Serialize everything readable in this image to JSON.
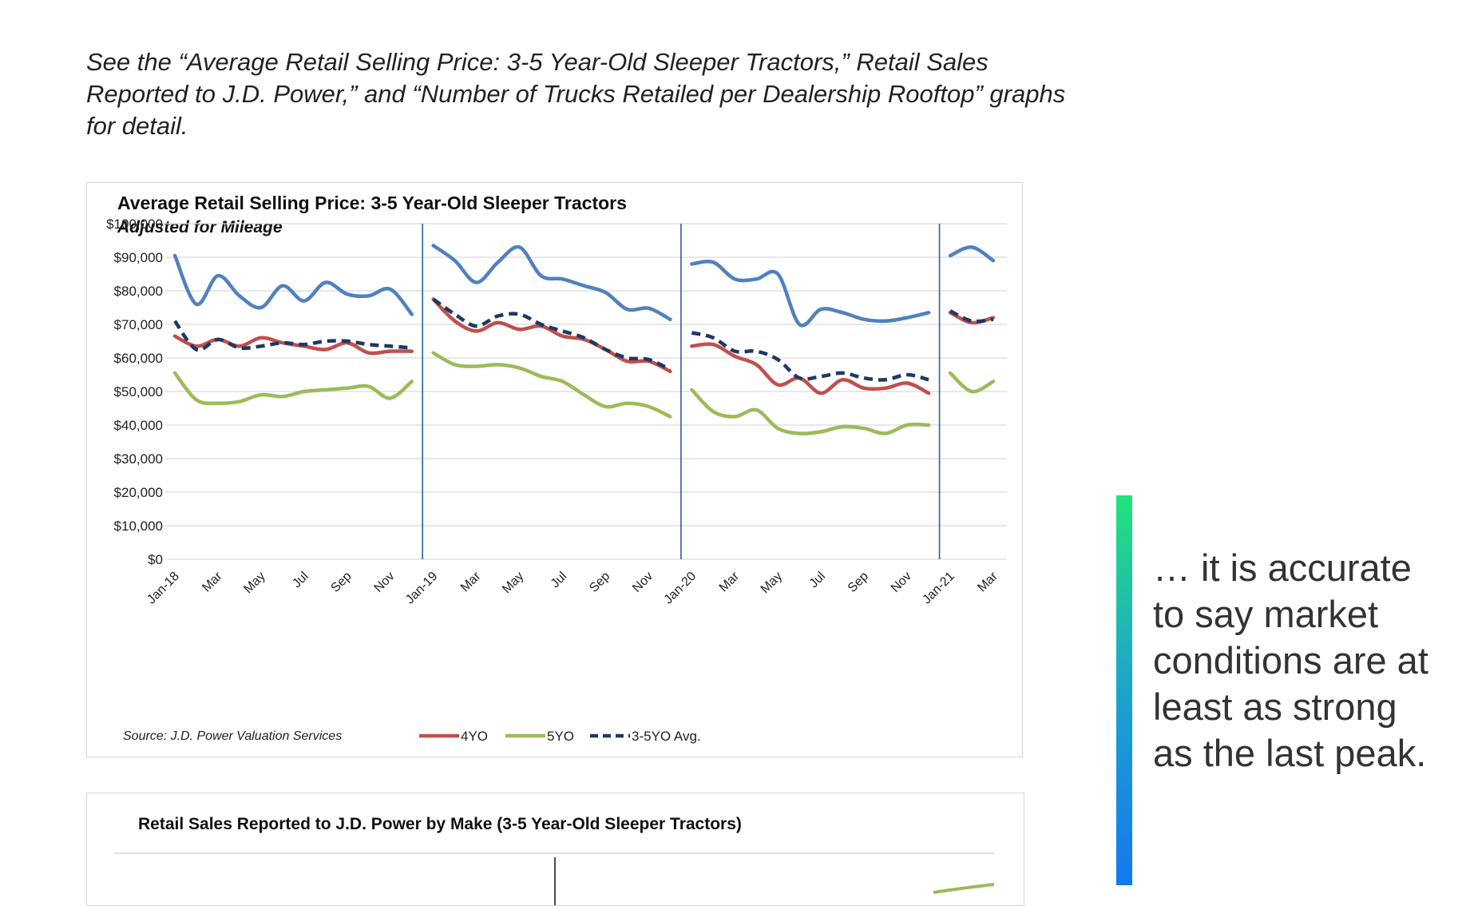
{
  "intro_text": "See the “Average Retail Selling Price: 3-5 Year-Old Sleeper Tractors,” Retail Sales Reported to J.D. Power,” and “Number of Trucks Retailed per Dealership Rooftop” graphs for detail.",
  "quote_text": "… it is accurate to say market conditions are at least as strong as the last peak.",
  "colors": {
    "4YO": "#c0504d",
    "5YO": "#9bbb59",
    "avg": "#1f3864",
    "blue": "#4f81bd",
    "grid": "#d9d9d9",
    "year_divider": "#2e5f9a",
    "quote_bar_top": "#22e37a",
    "quote_bar_bottom": "#1478f0"
  },
  "chart_data": [
    {
      "type": "line",
      "title": "Average Retail Selling Price: 3-5 Year-Old Sleeper Tractors",
      "subtitle": "Adjusted for Mileage",
      "source": "Source: J.D. Power Valuation Services",
      "ylim": [
        0,
        100000
      ],
      "y_ticks": [
        "$0",
        "$10,000",
        "$20,000",
        "$30,000",
        "$40,000",
        "$50,000",
        "$60,000",
        "$70,000",
        "$80,000",
        "$90,000",
        "$100,000"
      ],
      "y_tick_values": [
        0,
        10000,
        20000,
        30000,
        40000,
        50000,
        60000,
        70000,
        80000,
        90000,
        100000
      ],
      "x_tick_labels": [
        "Jan-18",
        "Mar",
        "May",
        "Jul",
        "Sep",
        "Nov",
        "Jan-19",
        "Mar",
        "May",
        "Jul",
        "Sep",
        "Nov",
        "Jan-20",
        "Mar",
        "May",
        "Jul",
        "Sep",
        "Nov",
        "Jan-21",
        "Mar"
      ],
      "x": [
        "Jan-18",
        "Feb-18",
        "Mar-18",
        "Apr-18",
        "May-18",
        "Jun-18",
        "Jul-18",
        "Aug-18",
        "Sep-18",
        "Oct-18",
        "Nov-18",
        "Dec-18",
        "Jan-19",
        "Feb-19",
        "Mar-19",
        "Apr-19",
        "May-19",
        "Jun-19",
        "Jul-19",
        "Aug-19",
        "Sep-19",
        "Oct-19",
        "Nov-19",
        "Dec-19",
        "Jan-20",
        "Feb-20",
        "Mar-20",
        "Apr-20",
        "May-20",
        "Jun-20",
        "Jul-20",
        "Aug-20",
        "Sep-20",
        "Oct-20",
        "Nov-20",
        "Dec-20",
        "Jan-21",
        "Feb-21",
        "Mar-21"
      ],
      "year_dividers": [
        "Jan-19",
        "Jan-20",
        "Jan-21"
      ],
      "legend": "bottom",
      "grid": true,
      "series": [
        {
          "name": "",
          "color_key": "blue",
          "segments": [
            [
              90500,
              76000,
              84500,
              78500,
              75000,
              81500,
              77000,
              82500,
              79000,
              78500,
              80500,
              73000
            ],
            [
              93500,
              89000,
              82500,
              88500,
              93000,
              84500,
              83500,
              81500,
              79500,
              74500,
              74800,
              71500
            ],
            [
              88000,
              88500,
              83500,
              83500,
              85000,
              70000,
              74500,
              73500,
              71500,
              71000,
              72000,
              73500
            ],
            [
              90500,
              93000,
              89000
            ]
          ]
        },
        {
          "name": "4YO",
          "color_key": "4YO",
          "segments": [
            [
              66500,
              63500,
              65500,
              63500,
              66000,
              64500,
              63500,
              62500,
              64500,
              61500,
              62000,
              62000
            ],
            [
              77500,
              71000,
              68000,
              70500,
              68500,
              69500,
              66500,
              65500,
              62500,
              59000,
              59000,
              56000
            ],
            [
              63500,
              64000,
              60500,
              58000,
              52000,
              54000,
              49500,
              53500,
              51000,
              51000,
              52500,
              49500
            ],
            [
              73500,
              70500,
              72000
            ]
          ]
        },
        {
          "name": "5YO",
          "color_key": "5YO",
          "segments": [
            [
              55500,
              47500,
              46500,
              47000,
              49000,
              48500,
              50000,
              50500,
              51000,
              51500,
              48000,
              53000
            ],
            [
              61500,
              58000,
              57500,
              58000,
              57000,
              54500,
              53000,
              49000,
              45500,
              46500,
              45500,
              42500
            ],
            [
              50500,
              44000,
              42500,
              44500,
              39000,
              37500,
              38000,
              39500,
              39000,
              37500,
              40000,
              40000
            ],
            [
              55500,
              50000,
              53000
            ]
          ]
        },
        {
          "name": "3-5YO Avg.",
          "color_key": "avg",
          "dashed": true,
          "segments": [
            [
              71000,
              62500,
              65500,
              63000,
              63500,
              64500,
              64000,
              65000,
              65000,
              64000,
              63500,
              63000
            ],
            [
              77500,
              73000,
              69500,
              72500,
              73000,
              70000,
              68000,
              66000,
              62500,
              60000,
              59500,
              56500
            ],
            [
              67500,
              66000,
              62000,
              62000,
              59500,
              54000,
              54500,
              55500,
              54000,
              53500,
              55000,
              53500
            ],
            [
              74000,
              71000,
              71500
            ]
          ]
        }
      ]
    },
    {
      "type": "bar",
      "title": "Retail Sales Reported to J.D. Power by Make (3-5 Year-Old Sleeper Tractors)",
      "series": [],
      "categories": []
    }
  ]
}
